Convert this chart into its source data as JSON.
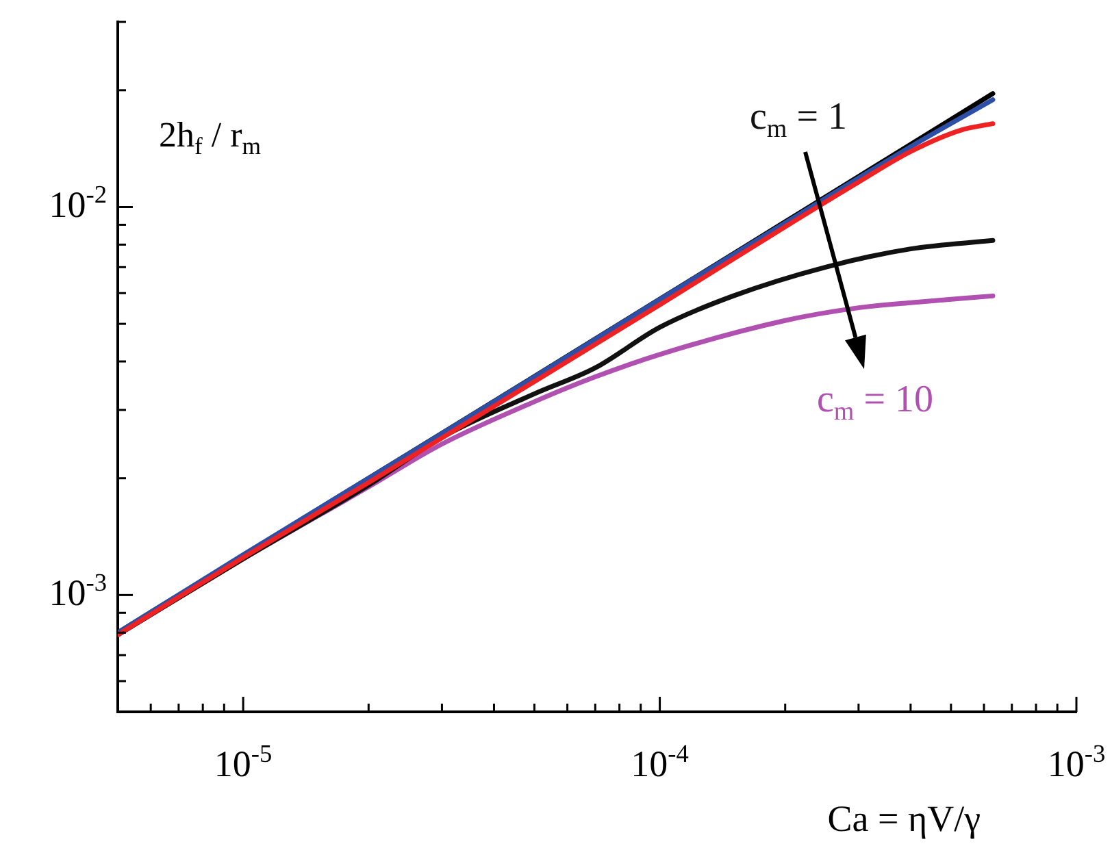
{
  "chart_data": {
    "type": "line",
    "xlabel": "Ca = ηV/γ",
    "ylabel": "2h$_{f}$ / r$_{m}$",
    "log": "xy",
    "grid": false,
    "legend": false,
    "marker": "none",
    "line_style": "solid",
    "xlim": [
      5e-06,
      0.001
    ],
    "ylim": [
      0.0005,
      0.03
    ],
    "xticks": [
      {
        "value": 6e-06,
        "label": null
      },
      {
        "value": 7e-06,
        "label": null
      },
      {
        "value": 8e-06,
        "label": null
      },
      {
        "value": 9e-06,
        "label": null
      },
      {
        "value": 1e-05,
        "label": "10$^{-5}$"
      },
      {
        "value": 2e-05,
        "label": null
      },
      {
        "value": 3e-05,
        "label": null
      },
      {
        "value": 4e-05,
        "label": null
      },
      {
        "value": 5e-05,
        "label": null
      },
      {
        "value": 6e-05,
        "label": null
      },
      {
        "value": 7e-05,
        "label": null
      },
      {
        "value": 8e-05,
        "label": null
      },
      {
        "value": 9e-05,
        "label": null
      },
      {
        "value": 0.0001,
        "label": "10$^{-4}$"
      },
      {
        "value": 0.0002,
        "label": null
      },
      {
        "value": 0.0003,
        "label": null
      },
      {
        "value": 0.0004,
        "label": null
      },
      {
        "value": 0.0005,
        "label": null
      },
      {
        "value": 0.0006,
        "label": null
      },
      {
        "value": 0.0007,
        "label": null
      },
      {
        "value": 0.0008,
        "label": null
      },
      {
        "value": 0.0009,
        "label": null
      },
      {
        "value": 0.001,
        "label": "10$^{-3}$"
      }
    ],
    "yticks": [
      {
        "value": 0.0006,
        "label": null
      },
      {
        "value": 0.0007,
        "label": null
      },
      {
        "value": 0.0008,
        "label": null
      },
      {
        "value": 0.0009,
        "label": null
      },
      {
        "value": 0.001,
        "label": "10$^{-3}$"
      },
      {
        "value": 0.002,
        "label": null
      },
      {
        "value": 0.003,
        "label": null
      },
      {
        "value": 0.004,
        "label": null
      },
      {
        "value": 0.005,
        "label": null
      },
      {
        "value": 0.006,
        "label": null
      },
      {
        "value": 0.007,
        "label": null
      },
      {
        "value": 0.008,
        "label": null
      },
      {
        "value": 0.009,
        "label": null
      },
      {
        "value": 0.01,
        "label": "10$^{-2}$"
      },
      {
        "value": 0.02,
        "label": null
      },
      {
        "value": 0.03,
        "label": null
      }
    ],
    "series": [
      {
        "color": "#ee2222",
        "x": [
          5e-06,
          1e-05,
          2e-05,
          5e-05,
          0.0001,
          0.0002,
          0.0003,
          0.0004,
          0.00053,
          0.00063
        ],
        "values": [
          0.00079,
          0.00125,
          0.00195,
          0.00355,
          0.0056,
          0.0089,
          0.0116,
          0.0139,
          0.0158,
          0.0164
        ]
      },
      {
        "color": "#2e4fa8",
        "x": [
          5e-06,
          1e-05,
          2e-05,
          5e-05,
          0.0001,
          0.0002,
          0.0004,
          0.00063
        ],
        "values": [
          0.0008,
          0.00127,
          0.002,
          0.00365,
          0.00578,
          0.0091,
          0.0143,
          0.0189
        ]
      },
      {
        "color": "#000000",
        "x": [
          5e-06,
          1e-05,
          2e-05,
          5e-05,
          0.0001,
          0.0002,
          0.0004,
          0.00063
        ],
        "values": [
          0.0008,
          0.001265,
          0.002,
          0.00366,
          0.00579,
          0.00916,
          0.0145,
          0.0196
        ]
      },
      {
        "color": "#111111",
        "x": [
          5e-06,
          1e-05,
          2e-05,
          3e-05,
          5e-05,
          7e-05,
          0.0001,
          0.00015,
          0.00025,
          0.0004,
          0.00063
        ],
        "values": [
          0.00079,
          0.00124,
          0.00192,
          0.00255,
          0.0033,
          0.00385,
          0.0049,
          0.0059,
          0.007,
          0.0078,
          0.0082
        ]
      },
      {
        "color": "#b050b0",
        "x": [
          5e-06,
          1e-05,
          2e-05,
          3e-05,
          5e-05,
          7e-05,
          0.0001,
          0.0002,
          0.0003,
          0.0004,
          0.00063
        ],
        "values": [
          0.00079,
          0.00124,
          0.0019,
          0.00245,
          0.00315,
          0.00365,
          0.00417,
          0.0051,
          0.0055,
          0.00567,
          0.0059
        ]
      }
    ],
    "annotations": [
      "c$_{m}$ = 1",
      "c$_{m}$ = 10"
    ]
  }
}
